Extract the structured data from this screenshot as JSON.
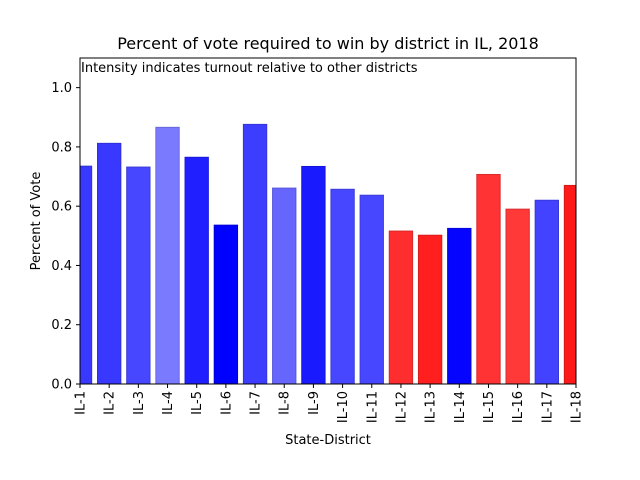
{
  "chart_data": {
    "type": "bar",
    "title": "Percent of vote required to win by district in IL, 2018",
    "subtitle_annotation": "Intensity indicates turnout relative to other districts",
    "xlabel": "State-District",
    "ylabel": "Percent of Vote",
    "ylim": [
      0,
      1.1
    ],
    "yticks": [
      0.0,
      0.2,
      0.4,
      0.6,
      0.8,
      1.0
    ],
    "ytick_labels": [
      "0.0",
      "0.2",
      "0.4",
      "0.6",
      "0.8",
      "1.0"
    ],
    "grid": false,
    "legend": "none",
    "categories": [
      "IL-1",
      "IL-2",
      "IL-3",
      "IL-4",
      "IL-5",
      "IL-6",
      "IL-7",
      "IL-8",
      "IL-9",
      "IL-10",
      "IL-11",
      "IL-12",
      "IL-13",
      "IL-14",
      "IL-15",
      "IL-16",
      "IL-17",
      "IL-18"
    ],
    "values": [
      0.735,
      0.812,
      0.732,
      0.866,
      0.765,
      0.536,
      0.876,
      0.661,
      0.734,
      0.657,
      0.637,
      0.516,
      0.502,
      0.525,
      0.707,
      0.59,
      0.62,
      0.67
    ],
    "party_colors": [
      "#0000ff",
      "#0000ff",
      "#0000ff",
      "#0000ff",
      "#0000ff",
      "#0000ff",
      "#0000ff",
      "#0000ff",
      "#0000ff",
      "#0000ff",
      "#0000ff",
      "#ff0000",
      "#ff0000",
      "#0000ff",
      "#ff0000",
      "#ff0000",
      "#0000ff",
      "#ff0000"
    ],
    "intensity": [
      0.78,
      0.78,
      0.72,
      0.52,
      0.88,
      1.0,
      0.76,
      0.6,
      0.9,
      0.72,
      0.72,
      0.82,
      0.88,
      0.98,
      0.8,
      0.78,
      0.74,
      0.9
    ]
  }
}
